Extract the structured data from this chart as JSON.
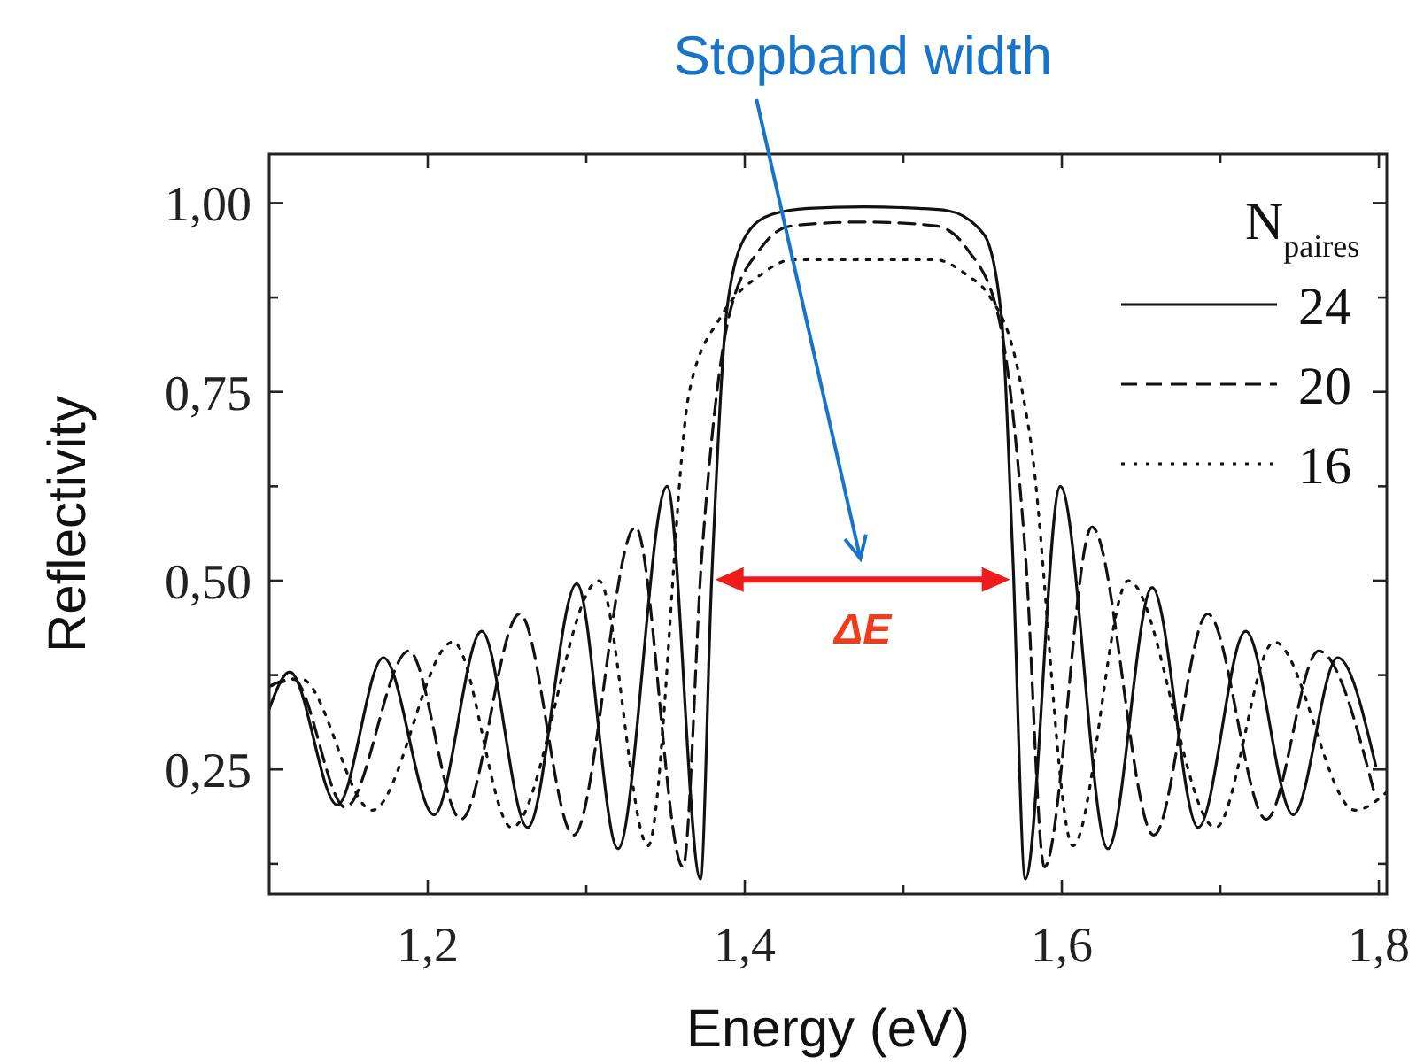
{
  "chart_data": {
    "type": "line",
    "xlabel": "Energy (eV)",
    "ylabel": "Reflectivity",
    "legend_title": "N$_{paires}$",
    "legend": "top right",
    "grid": false,
    "xlim": [
      1.1,
      1.805
    ],
    "ylim": [
      0.085,
      1.065
    ],
    "xticks": [
      {
        "value": 1.2,
        "label": "1,2"
      },
      {
        "value": 1.3,
        "label": null
      },
      {
        "value": 1.4,
        "label": "1,4"
      },
      {
        "value": 1.5,
        "label": null
      },
      {
        "value": 1.6,
        "label": "1,6"
      },
      {
        "value": 1.7,
        "label": null
      },
      {
        "value": 1.8,
        "label": "1,8"
      }
    ],
    "yticks": [
      {
        "value": 0.125,
        "label": null
      },
      {
        "value": 0.25,
        "label": "0,25"
      },
      {
        "value": 0.375,
        "label": null
      },
      {
        "value": 0.5,
        "label": "0,50"
      },
      {
        "value": 0.625,
        "label": null
      },
      {
        "value": 0.75,
        "label": "0,75"
      },
      {
        "value": 0.875,
        "label": null
      },
      {
        "value": 1.0,
        "label": "1,00"
      }
    ],
    "annotations": [
      "Stopband width",
      "ΔE"
    ],
    "series": [
      {
        "name": "24",
        "color": "#111111",
        "line_style": "solid",
        "x": [
          1.1,
          1.113,
          1.143,
          1.172,
          1.204,
          1.234,
          1.263,
          1.294,
          1.32,
          1.351,
          1.372,
          1.379,
          1.389,
          1.401,
          1.417,
          1.44,
          1.475,
          1.51,
          1.528,
          1.551,
          1.562,
          1.569,
          1.577,
          1.599,
          1.629,
          1.657,
          1.686,
          1.716,
          1.746,
          1.774,
          1.798
        ],
        "values": [
          0.33,
          0.379,
          0.203,
          0.398,
          0.19,
          0.433,
          0.173,
          0.496,
          0.145,
          0.625,
          0.105,
          0.496,
          0.864,
          0.958,
          0.985,
          0.993,
          0.995,
          0.993,
          0.99,
          0.958,
          0.848,
          0.536,
          0.105,
          0.625,
          0.145,
          0.491,
          0.173,
          0.433,
          0.19,
          0.398,
          0.255
        ]
      },
      {
        "name": "20",
        "color": "#111111",
        "line_style": "dashed",
        "x": [
          1.1,
          1.115,
          1.148,
          1.188,
          1.221,
          1.258,
          1.292,
          1.331,
          1.361,
          1.373,
          1.39,
          1.41,
          1.43,
          1.475,
          1.52,
          1.54,
          1.56,
          1.577,
          1.589,
          1.619,
          1.658,
          1.692,
          1.729,
          1.762,
          1.797
        ],
        "values": [
          0.36,
          0.37,
          0.2,
          0.407,
          0.184,
          0.456,
          0.163,
          0.571,
          0.121,
          0.536,
          0.85,
          0.94,
          0.97,
          0.975,
          0.97,
          0.94,
          0.85,
          0.536,
          0.121,
          0.571,
          0.163,
          0.456,
          0.184,
          0.407,
          0.22
        ]
      },
      {
        "name": "16",
        "color": "#111111",
        "line_style": "dotted",
        "x": [
          1.1,
          1.12,
          1.165,
          1.216,
          1.253,
          1.308,
          1.339,
          1.365,
          1.385,
          1.41,
          1.43,
          1.475,
          1.52,
          1.54,
          1.554,
          1.57,
          1.58,
          1.607,
          1.642,
          1.697,
          1.734,
          1.785,
          1.805
        ],
        "values": [
          0.36,
          0.37,
          0.196,
          0.419,
          0.173,
          0.5,
          0.149,
          0.75,
          0.85,
          0.905,
          0.925,
          0.925,
          0.925,
          0.905,
          0.878,
          0.8,
          0.69,
          0.149,
          0.5,
          0.173,
          0.419,
          0.196,
          0.22
        ]
      }
    ]
  }
}
